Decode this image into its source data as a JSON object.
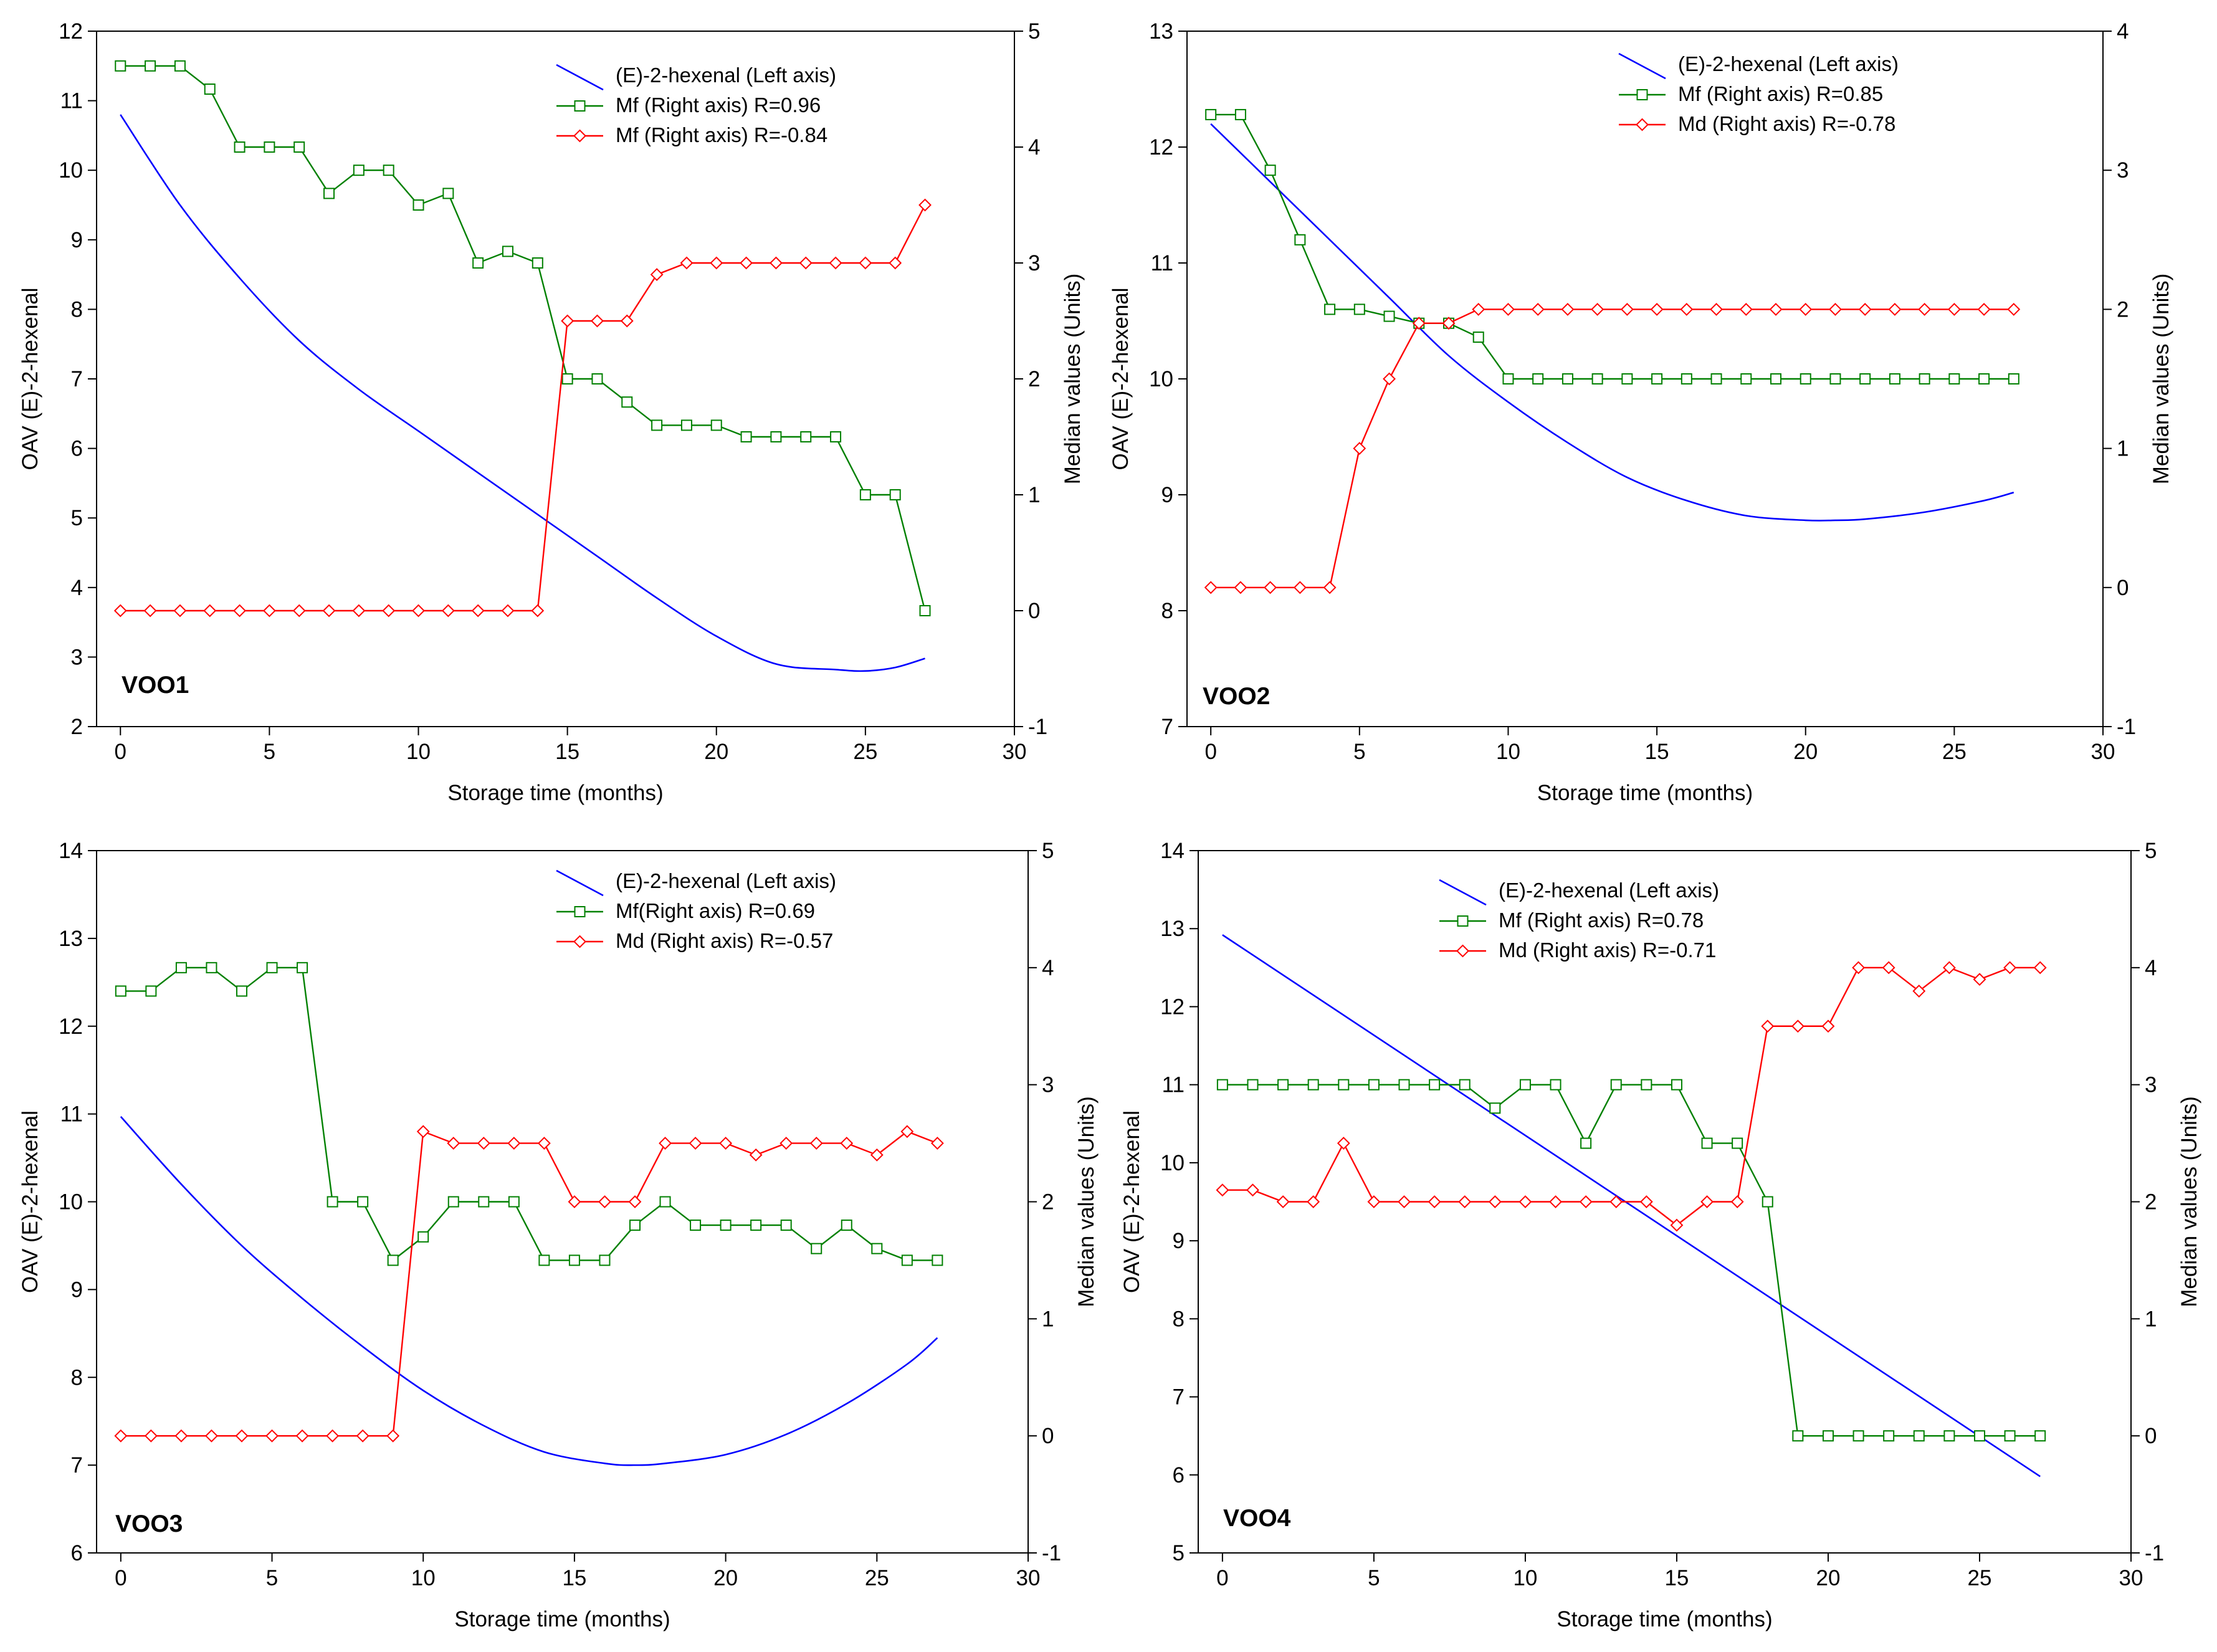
{
  "chart_data": [
    {
      "type": "line",
      "title": "VOO1",
      "xlabel": "Storage time (months)",
      "ylabel_left": "OAV (E)-2-hexenal",
      "ylabel_right": "Median values (Units)",
      "xlim": [
        -0.8,
        30
      ],
      "xticks": [
        0,
        5,
        10,
        15,
        20,
        25,
        30
      ],
      "ylim_left": [
        2,
        12
      ],
      "yticks_left": [
        2,
        3,
        4,
        5,
        6,
        7,
        8,
        9,
        10,
        11,
        12
      ],
      "ylim_right": [
        -1,
        5
      ],
      "yticks_right": [
        -1,
        0,
        1,
        2,
        3,
        4,
        5
      ],
      "legend_position": "top-right",
      "series": [
        {
          "name": "(E)-2-hexenal (Left axis)",
          "axis": "left",
          "color": "#0000ff",
          "marker": "none",
          "x": [
            0,
            2,
            4,
            6,
            8,
            10,
            12,
            14,
            16,
            18,
            20,
            22,
            24,
            25,
            26,
            27
          ],
          "values": [
            10.8,
            9.5,
            8.45,
            7.55,
            6.85,
            6.25,
            5.65,
            5.05,
            4.45,
            3.85,
            3.3,
            2.9,
            2.82,
            2.8,
            2.85,
            2.98
          ]
        },
        {
          "name": "Mf (Right axis) R=0.96",
          "axis": "right",
          "color": "#008000",
          "marker": "square",
          "x": [
            0,
            1,
            2,
            3,
            4,
            5,
            6,
            7,
            8,
            9,
            10,
            11,
            12,
            13,
            14,
            15,
            16,
            17,
            18,
            19,
            20,
            21,
            22,
            23,
            24,
            25,
            26,
            27
          ],
          "values": [
            4.7,
            4.7,
            4.7,
            4.5,
            4.0,
            4.0,
            4.0,
            3.6,
            3.8,
            3.8,
            3.5,
            3.6,
            3.0,
            3.1,
            3.0,
            2.0,
            2.0,
            1.8,
            1.6,
            1.6,
            1.6,
            1.5,
            1.5,
            1.5,
            1.5,
            1.0,
            1.0,
            0.0
          ]
        },
        {
          "name": "Mf (Right axis) R=-0.84",
          "axis": "right",
          "color": "#ff0000",
          "marker": "diamond",
          "x": [
            0,
            1,
            2,
            3,
            4,
            5,
            6,
            7,
            8,
            9,
            10,
            11,
            12,
            13,
            14,
            15,
            16,
            17,
            18,
            19,
            20,
            21,
            22,
            23,
            24,
            25,
            26,
            27
          ],
          "values": [
            0,
            0,
            0,
            0,
            0,
            0,
            0,
            0,
            0,
            0,
            0,
            0,
            0,
            0,
            0,
            2.5,
            2.5,
            2.5,
            2.9,
            3.0,
            3.0,
            3.0,
            3.0,
            3.0,
            3.0,
            3.0,
            3.0,
            3.5
          ]
        }
      ]
    },
    {
      "type": "line",
      "title": "VOO2",
      "xlabel": "Storage time (months)",
      "ylabel_left": "OAV (E)-2-hexenal",
      "ylabel_right": "Median values (Units)",
      "xlim": [
        -0.8,
        30
      ],
      "xticks": [
        0,
        5,
        10,
        15,
        20,
        25,
        30
      ],
      "ylim_left": [
        7,
        13
      ],
      "yticks_left": [
        7,
        8,
        9,
        10,
        11,
        12,
        13
      ],
      "ylim_right": [
        -1,
        4
      ],
      "yticks_right": [
        -1,
        0,
        1,
        2,
        3,
        4
      ],
      "legend_position": "top-right",
      "series": [
        {
          "name": "(E)-2-hexenal (Left axis)",
          "axis": "left",
          "color": "#0000ff",
          "marker": "none",
          "x": [
            0,
            2,
            4,
            6,
            8,
            10,
            12,
            14,
            16,
            18,
            20,
            21,
            22,
            24,
            26,
            27
          ],
          "values": [
            12.2,
            11.7,
            11.2,
            10.7,
            10.2,
            9.8,
            9.45,
            9.15,
            8.95,
            8.82,
            8.78,
            8.78,
            8.79,
            8.85,
            8.95,
            9.02
          ]
        },
        {
          "name": "Mf (Right axis)  R=0.85",
          "axis": "right",
          "color": "#008000",
          "marker": "square",
          "x": [
            0,
            1,
            2,
            3,
            4,
            5,
            6,
            7,
            8,
            9,
            10,
            11,
            12,
            13,
            14,
            15,
            16,
            17,
            18,
            19,
            20,
            21,
            22,
            23,
            24,
            25,
            26,
            27
          ],
          "values": [
            3.4,
            3.4,
            3.0,
            2.5,
            2.0,
            2.0,
            1.95,
            1.9,
            1.9,
            1.8,
            1.5,
            1.5,
            1.5,
            1.5,
            1.5,
            1.5,
            1.5,
            1.5,
            1.5,
            1.5,
            1.5,
            1.5,
            1.5,
            1.5,
            1.5,
            1.5,
            1.5,
            1.5
          ]
        },
        {
          "name": "Md (Right axis) R=-0.78",
          "axis": "right",
          "color": "#ff0000",
          "marker": "diamond",
          "x": [
            0,
            1,
            2,
            3,
            4,
            5,
            6,
            7,
            8,
            9,
            10,
            11,
            12,
            13,
            14,
            15,
            16,
            17,
            18,
            19,
            20,
            21,
            22,
            23,
            24,
            25,
            26,
            27
          ],
          "values": [
            0,
            0,
            0,
            0,
            0,
            1.0,
            1.5,
            1.9,
            1.9,
            2.0,
            2.0,
            2.0,
            2.0,
            2.0,
            2.0,
            2.0,
            2.0,
            2.0,
            2.0,
            2.0,
            2.0,
            2.0,
            2.0,
            2.0,
            2.0,
            2.0,
            2.0,
            2.0
          ]
        }
      ]
    },
    {
      "type": "line",
      "title": "VOO3",
      "xlabel": "Storage time (months)",
      "ylabel_left": "OAV (E)-2-hexenal",
      "ylabel_right": "Median values (Units)",
      "xlim": [
        -0.8,
        30
      ],
      "xticks": [
        0,
        5,
        10,
        15,
        20,
        25,
        30
      ],
      "ylim_left": [
        6,
        14
      ],
      "yticks_left": [
        6,
        7,
        8,
        9,
        10,
        11,
        12,
        13,
        14
      ],
      "ylim_right": [
        -1,
        5
      ],
      "yticks_right": [
        -1,
        0,
        1,
        2,
        3,
        4,
        5
      ],
      "legend_position": "top-right",
      "series": [
        {
          "name": "(E)-2-hexenal (Left axis)",
          "axis": "left",
          "color": "#0000ff",
          "marker": "none",
          "x": [
            0,
            2,
            4,
            6,
            8,
            10,
            12,
            14,
            16,
            17,
            18,
            20,
            22,
            24,
            26,
            27
          ],
          "values": [
            10.97,
            10.2,
            9.5,
            8.9,
            8.35,
            7.85,
            7.45,
            7.15,
            7.02,
            7.0,
            7.02,
            7.12,
            7.35,
            7.7,
            8.15,
            8.45
          ]
        },
        {
          "name": "Mf(Right axis)   R=0.69",
          "axis": "right",
          "color": "#008000",
          "marker": "square",
          "x": [
            0,
            1,
            2,
            3,
            4,
            5,
            6,
            7,
            8,
            9,
            10,
            11,
            12,
            13,
            14,
            15,
            16,
            17,
            18,
            19,
            20,
            21,
            22,
            23,
            24,
            25,
            26,
            27
          ],
          "values": [
            3.8,
            3.8,
            4.0,
            4.0,
            3.8,
            4.0,
            4.0,
            2.0,
            2.0,
            1.5,
            1.7,
            2.0,
            2.0,
            2.0,
            1.5,
            1.5,
            1.5,
            1.8,
            2.0,
            1.8,
            1.8,
            1.8,
            1.8,
            1.6,
            1.8,
            1.6,
            1.5,
            1.5
          ]
        },
        {
          "name": "Md (Right axis) R=-0.57",
          "axis": "right",
          "color": "#ff0000",
          "marker": "diamond",
          "x": [
            0,
            1,
            2,
            3,
            4,
            5,
            6,
            7,
            8,
            9,
            10,
            11,
            12,
            13,
            14,
            15,
            16,
            17,
            18,
            19,
            20,
            21,
            22,
            23,
            24,
            25,
            26,
            27
          ],
          "values": [
            0,
            0,
            0,
            0,
            0,
            0,
            0,
            0,
            0,
            0,
            2.6,
            2.5,
            2.5,
            2.5,
            2.5,
            2.0,
            2.0,
            2.0,
            2.5,
            2.5,
            2.5,
            2.4,
            2.5,
            2.5,
            2.5,
            2.4,
            2.6,
            2.5
          ]
        }
      ]
    },
    {
      "type": "line",
      "title": "VOO4",
      "xlabel": "Storage time (months)",
      "ylabel_left": "OAV (E)-2-hexenal",
      "ylabel_right": "Median values (Units)",
      "xlim": [
        -0.8,
        30
      ],
      "xticks": [
        0,
        5,
        10,
        15,
        20,
        25,
        30
      ],
      "ylim_left": [
        5,
        14
      ],
      "yticks_left": [
        5,
        6,
        7,
        8,
        9,
        10,
        11,
        12,
        13,
        14
      ],
      "ylim_right": [
        -1,
        5
      ],
      "yticks_right": [
        -1,
        0,
        1,
        2,
        3,
        4,
        5
      ],
      "legend_position": "top-right",
      "series": [
        {
          "name": "(E)-2-hexenal (Left axis)",
          "axis": "left",
          "color": "#0000ff",
          "marker": "none",
          "x": [
            0,
            27
          ],
          "values": [
            12.92,
            5.98
          ]
        },
        {
          "name": "Mf (Right axis)  R=0.78",
          "axis": "right",
          "color": "#008000",
          "marker": "square",
          "x": [
            0,
            1,
            2,
            3,
            4,
            5,
            6,
            7,
            8,
            9,
            10,
            11,
            12,
            13,
            14,
            15,
            16,
            17,
            18,
            19,
            20,
            21,
            22,
            23,
            24,
            25,
            26,
            27
          ],
          "values": [
            3.0,
            3.0,
            3.0,
            3.0,
            3.0,
            3.0,
            3.0,
            3.0,
            3.0,
            2.8,
            3.0,
            3.0,
            2.5,
            3.0,
            3.0,
            3.0,
            2.5,
            2.5,
            2.0,
            0,
            0,
            0,
            0,
            0,
            0,
            0,
            0,
            0
          ]
        },
        {
          "name": "Md (Right axis) R=-0.71",
          "axis": "right",
          "color": "#ff0000",
          "marker": "diamond",
          "x": [
            0,
            1,
            2,
            3,
            4,
            5,
            6,
            7,
            8,
            9,
            10,
            11,
            12,
            13,
            14,
            15,
            16,
            17,
            18,
            19,
            20,
            21,
            22,
            23,
            24,
            25,
            26,
            27
          ],
          "values": [
            2.1,
            2.1,
            2.0,
            2.0,
            2.5,
            2.0,
            2.0,
            2.0,
            2.0,
            2.0,
            2.0,
            2.0,
            2.0,
            2.0,
            2.0,
            1.8,
            2.0,
            2.0,
            3.5,
            3.5,
            3.5,
            4.0,
            4.0,
            3.8,
            4.0,
            3.9,
            4.0,
            4.0
          ]
        }
      ]
    }
  ]
}
